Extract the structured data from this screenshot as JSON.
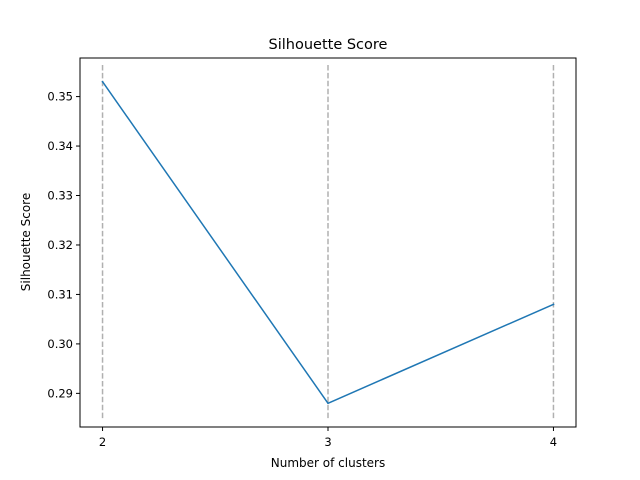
{
  "chart_data": {
    "type": "line",
    "title": "Silhouette Score",
    "xlabel": "Number of clusters",
    "ylabel": "Silhouette Score",
    "x": [
      2,
      3,
      4
    ],
    "xticks": [
      "2",
      "3",
      "4"
    ],
    "xlim": [
      1.9,
      4.1
    ],
    "yticks": [
      "0.29",
      "0.30",
      "0.31",
      "0.32",
      "0.33",
      "0.34",
      "0.35"
    ],
    "ylim": [
      0.2832,
      0.3578
    ],
    "series": [
      {
        "values": [
          0.353,
          0.288,
          0.308
        ],
        "color": "#1f77b4"
      }
    ],
    "reference_lines": {
      "orientation": "vertical",
      "x": [
        2,
        3,
        4
      ],
      "ymin": 0.285,
      "ymax": 0.3565,
      "style": "dashed",
      "color": "#b0b0b0"
    },
    "grid": false,
    "legend": "none"
  }
}
